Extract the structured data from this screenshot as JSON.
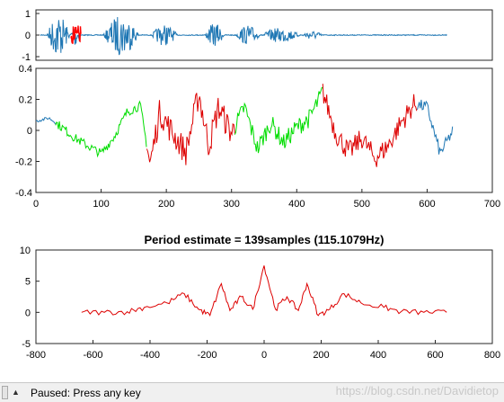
{
  "figure": {
    "ax1": {
      "yticks": [
        "1",
        "0",
        "-1"
      ],
      "colors": {
        "waveform": "#1f77b4",
        "highlight": "#ff0000"
      }
    },
    "ax2": {
      "xticks": [
        "0",
        "100",
        "200",
        "300",
        "400",
        "500",
        "600",
        "700"
      ],
      "yticks": [
        "0.4",
        "0.2",
        "0",
        "-0.2",
        "-0.4"
      ],
      "colors": {
        "unvoiced": "#1f77b4",
        "voiced_a": "#00dd00",
        "voiced_b": "#dd0000"
      }
    },
    "ax3": {
      "title": "Period estimate = 139samples (115.1079Hz)",
      "xticks": [
        "-800",
        "-600",
        "-400",
        "-200",
        "0",
        "200",
        "400",
        "600",
        "800"
      ],
      "yticks": [
        "10",
        "5",
        "0",
        "-5"
      ],
      "colors": {
        "curve": "#dd0000"
      }
    }
  },
  "statusbar": {
    "status_text": "Paused: Press any key",
    "grip_icon": "collapse-arrow-icon",
    "watermark": "https://blog.csdn.net/Davidietop"
  },
  "chart_data": [
    {
      "type": "line",
      "title": "",
      "xlabel": "",
      "ylabel": "",
      "ylim": [
        -1,
        1
      ],
      "grid": false,
      "series": [
        {
          "values": [
            0.6,
            -0.85,
            0.55,
            -0.5,
            0.5,
            -0.45,
            0.35,
            -0.3,
            0.2,
            -0.15,
            0.05,
            0.02,
            0
          ]
        }
      ]
    },
    {
      "type": "line",
      "title": "",
      "xlabel": "",
      "ylabel": "",
      "xlim": [
        0,
        700
      ],
      "ylim": [
        -0.4,
        0.4
      ],
      "grid": false,
      "x": [
        0,
        20,
        40,
        60,
        80,
        100,
        120,
        140,
        160,
        175,
        190,
        210,
        230,
        250,
        265,
        280,
        300,
        320,
        340,
        360,
        380,
        400,
        420,
        440,
        460,
        480,
        500,
        520,
        540,
        560,
        580,
        600,
        620,
        640
      ],
      "series": [
        {
          "values": [
            0.06,
            0.08,
            0.02,
            -0.05,
            -0.1,
            -0.15,
            -0.04,
            0.12,
            0.16,
            -0.22,
            0.12,
            -0.02,
            -0.14,
            0.24,
            -0.1,
            0.15,
            -0.02,
            0.15,
            -0.12,
            0.05,
            -0.08,
            0.02,
            0.08,
            0.25,
            -0.02,
            -0.14,
            -0.05,
            -0.18,
            -0.1,
            0.05,
            0.17,
            0.15,
            -0.15,
            0.0
          ]
        }
      ]
    },
    {
      "type": "line",
      "title": "Period estimate = 139samples (115.1079Hz)",
      "xlabel": "",
      "ylabel": "",
      "xlim": [
        -800,
        800
      ],
      "ylim": [
        -5,
        10
      ],
      "grid": false,
      "x": [
        -640,
        -560,
        -480,
        -420,
        -340,
        -280,
        -230,
        -190,
        -150,
        -120,
        -80,
        -40,
        0,
        40,
        80,
        120,
        150,
        190,
        230,
        280,
        340,
        420,
        480,
        560,
        640
      ],
      "series": [
        {
          "values": [
            0,
            0,
            0.1,
            0.8,
            1.5,
            3.0,
            0.5,
            -0.5,
            4.6,
            0.3,
            2.5,
            0.5,
            7.5,
            0.5,
            2.5,
            0.3,
            4.6,
            -0.5,
            0.5,
            3.0,
            1.5,
            0.8,
            0.1,
            0,
            0
          ]
        }
      ]
    }
  ]
}
